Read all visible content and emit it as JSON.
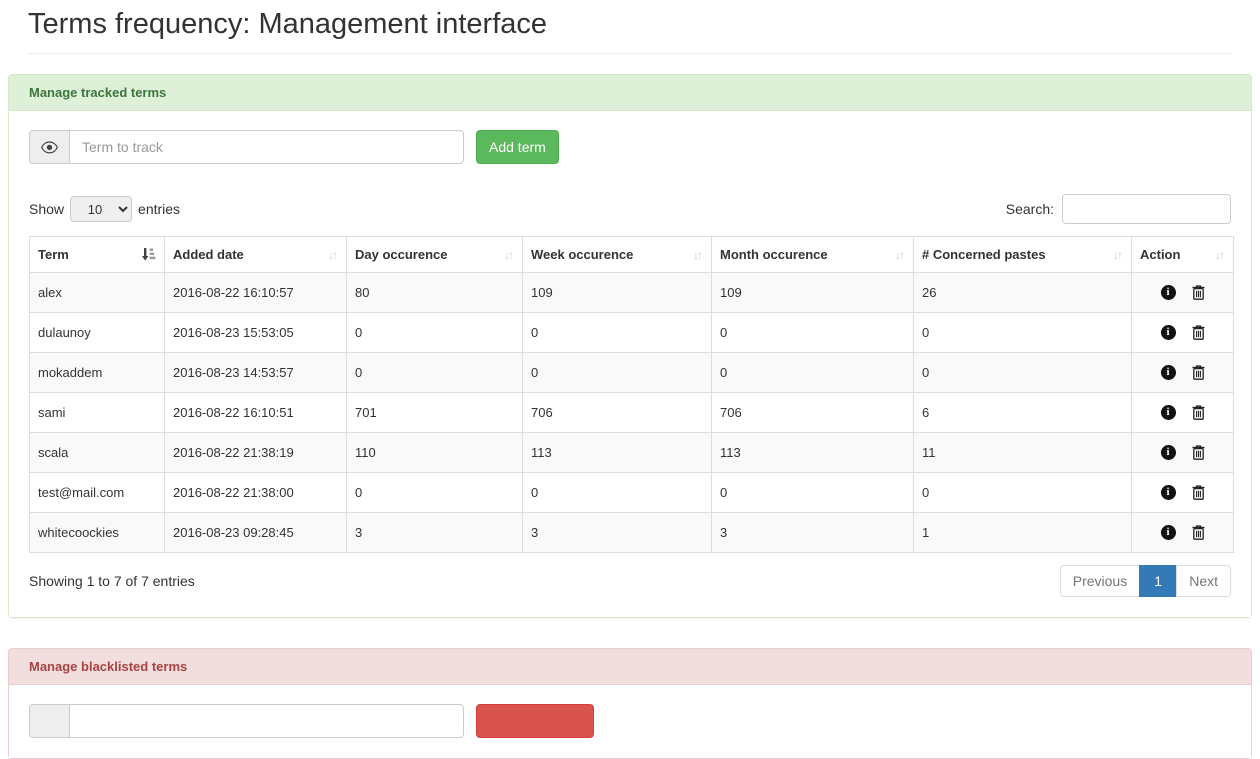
{
  "page": {
    "title": "Terms frequency: Management interface"
  },
  "icons": {
    "info_glyph": "i"
  },
  "colors": {
    "success_heading_bg": "#dff0d8",
    "success_heading_text": "#3c763d",
    "success_border": "#d6e9c6",
    "danger_heading_bg": "#f2dede",
    "danger_heading_text": "#a94442",
    "success_button": "#5cb85c",
    "danger_button": "#d9534f",
    "active_page": "#337ab7",
    "stripe_row": "#f9f9f9",
    "table_border": "#dddddd"
  },
  "tracked_panel": {
    "header": "Manage tracked terms",
    "term_input_placeholder": "Term to track",
    "term_input_value": "",
    "add_button": "Add term",
    "show_label": "Show",
    "entries_label": "entries",
    "page_length": "10",
    "search_label": "Search:",
    "search_value": "",
    "table": {
      "columns": [
        "Term",
        "Added date",
        "Day occurence",
        "Week occurence",
        "Month occurence",
        "# Concerned pastes",
        "Action"
      ],
      "sorted_column": "Term",
      "sort_direction": "asc",
      "rows": [
        {
          "term": "alex",
          "added": "2016-08-22 16:10:57",
          "day": "80",
          "week": "109",
          "month": "109",
          "pastes": "26"
        },
        {
          "term": "dulaunoy",
          "added": "2016-08-23 15:53:05",
          "day": "0",
          "week": "0",
          "month": "0",
          "pastes": "0"
        },
        {
          "term": "mokaddem",
          "added": "2016-08-23 14:53:57",
          "day": "0",
          "week": "0",
          "month": "0",
          "pastes": "0"
        },
        {
          "term": "sami",
          "added": "2016-08-22 16:10:51",
          "day": "701",
          "week": "706",
          "month": "706",
          "pastes": "6"
        },
        {
          "term": "scala",
          "added": "2016-08-22 21:38:19",
          "day": "110",
          "week": "113",
          "month": "113",
          "pastes": "11"
        },
        {
          "term": "test@mail.com",
          "added": "2016-08-22 21:38:00",
          "day": "0",
          "week": "0",
          "month": "0",
          "pastes": "0"
        },
        {
          "term": "whitecoockies",
          "added": "2016-08-23 09:28:45",
          "day": "3",
          "week": "3",
          "month": "3",
          "pastes": "1"
        }
      ]
    },
    "info_text": "Showing 1 to 7 of 7 entries",
    "pagination": {
      "previous": "Previous",
      "page": "1",
      "next": "Next"
    }
  },
  "blacklist_panel": {
    "header": "Manage blacklisted terms",
    "term_input_value": ""
  }
}
